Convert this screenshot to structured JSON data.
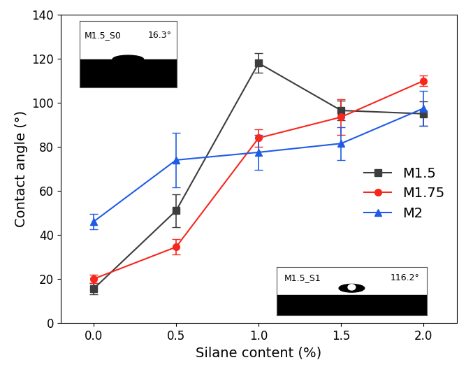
{
  "chart_data": {
    "type": "line",
    "x_label": "Silane content (%)",
    "y_label": "Contact angle (°)",
    "x": [
      0,
      0.5,
      1,
      1.5,
      2
    ],
    "series": [
      {
        "name": "M1.5",
        "color": "#3d3d3d",
        "marker": "square",
        "line_style": "solid",
        "values": [
          15.5,
          51,
          118,
          96.5,
          95
        ],
        "errors": [
          2.5,
          7.5,
          4.5,
          4.5,
          5.5
        ]
      },
      {
        "name": "M1.75",
        "color": "#f5281e",
        "marker": "circle",
        "line_style": "solid",
        "values": [
          20,
          34.5,
          84,
          93.5,
          110
        ],
        "errors": [
          2,
          3.5,
          4,
          8,
          2.5
        ]
      },
      {
        "name": "M2",
        "color": "#1f5ce6",
        "marker": "triangle",
        "line_style": "solid",
        "values": [
          46,
          74,
          77.5,
          81.5,
          97.5
        ],
        "errors": [
          3.5,
          12.5,
          8,
          7.5,
          8
        ]
      }
    ],
    "xlim": [
      -0.2,
      2.2
    ],
    "xticks": [
      {
        "value": 0,
        "label": "0.0"
      },
      {
        "value": 0.5,
        "label": "0.5"
      },
      {
        "value": 1,
        "label": "1.0"
      },
      {
        "value": 1.5,
        "label": "1.5"
      },
      {
        "value": 2,
        "label": "2.0"
      }
    ],
    "ylim": [
      0,
      140
    ],
    "yticks": [
      0,
      20,
      40,
      60,
      80,
      100,
      120,
      140
    ],
    "legend": "right",
    "insets": [
      {
        "sample": "M1.5_S0",
        "angle": "16.3°"
      },
      {
        "sample": "M1.5_S1",
        "angle": "116.2°"
      }
    ]
  }
}
